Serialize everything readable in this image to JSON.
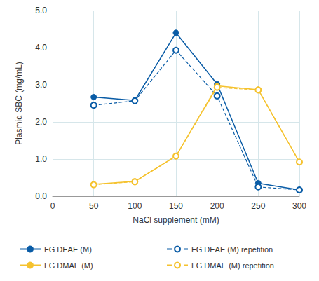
{
  "chart_data": {
    "type": "line",
    "x_label": "NaCl supplement (mM)",
    "y_label": "Plasmid SBC (mg/mL)",
    "x": [
      50,
      100,
      150,
      200,
      250,
      300
    ],
    "series": [
      {
        "name": "FG DEAE (M)",
        "color": "#0a5ca6",
        "marker": "filled",
        "line_style": "solid",
        "values": [
          2.67,
          2.58,
          4.4,
          3.02,
          0.35,
          0.17
        ]
      },
      {
        "name": "FG DEAE (M) repetition",
        "color": "#0a5ca6",
        "marker": "open",
        "line_style": "dashed",
        "values": [
          2.45,
          2.57,
          3.93,
          2.7,
          0.25,
          0.17
        ]
      },
      {
        "name": "FG DMAE (M)",
        "color": "#f5c22e",
        "marker": "filled",
        "line_style": "solid",
        "values": [
          0.32,
          0.4,
          1.08,
          2.97,
          2.87,
          0.92
        ]
      },
      {
        "name": "FG DMAE (M) repetition",
        "color": "#f5c22e",
        "marker": "open",
        "line_style": "dashed",
        "values": [
          0.31,
          0.39,
          1.08,
          2.93,
          2.86,
          0.92
        ]
      }
    ],
    "xlim": [
      0,
      300
    ],
    "xticks": [
      0,
      50,
      100,
      150,
      200,
      250,
      300
    ],
    "ylim": [
      0,
      5
    ],
    "yticks": [
      {
        "value": 0,
        "label": "0.0"
      },
      {
        "value": 1,
        "label": "1.0"
      },
      {
        "value": 2,
        "label": "2.0"
      },
      {
        "value": 3,
        "label": "3.0"
      },
      {
        "value": 4,
        "label": "4.0"
      },
      {
        "value": 5,
        "label": "5.0"
      }
    ],
    "grid": true,
    "legend": "bottom"
  }
}
